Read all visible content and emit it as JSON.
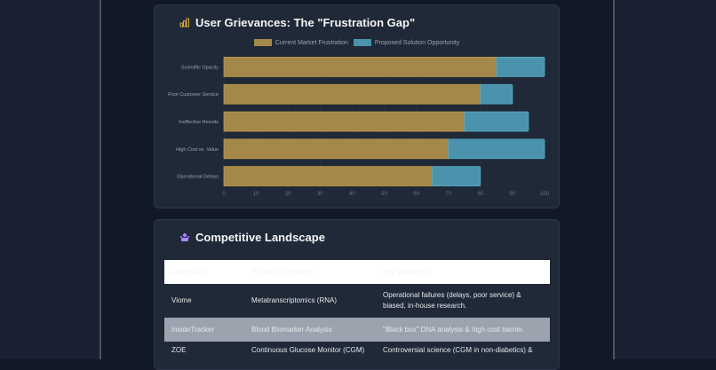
{
  "chart_section": {
    "title": "User Grievances: The \"Frustration Gap\"",
    "icon": "bar-chart-icon"
  },
  "chart_data": {
    "type": "bar",
    "orientation": "horizontal",
    "stacked": true,
    "categories": [
      "Scientific Opacity",
      "Poor Customer Service",
      "Ineffective Results",
      "High Cost vs. Value",
      "Operational Delays"
    ],
    "series": [
      {
        "name": "Current Market Frustration",
        "values": [
          85,
          80,
          75,
          70,
          65
        ],
        "color": "#a3884a"
      },
      {
        "name": "Proposed Solution Opportunity",
        "values": [
          15,
          10,
          20,
          30,
          15
        ],
        "color": "#4b93ad"
      }
    ],
    "xlim": [
      0,
      100
    ],
    "xticks": [
      0,
      10,
      20,
      30,
      40,
      50,
      60,
      70,
      80,
      90,
      100
    ],
    "legend": "top",
    "grid": true
  },
  "table_section": {
    "title": "Competitive Landscape",
    "icon": "users-icon",
    "headers": [
      "Competitor",
      "Primary Technology",
      "Key Weakness"
    ],
    "rows": [
      [
        "Viome",
        "Metatranscriptomics (RNA)",
        "Operational failures (delays, poor service) & biased, in-house research."
      ],
      [
        "InsideTracker",
        "Blood Biomarker Analysis",
        "\"Black box\" DNA analysis & high cost barrier."
      ],
      [
        "ZOE",
        "Continuous Glucose Monitor (CGM)",
        "Controversial science (CGM in non-diabetics) &"
      ]
    ]
  }
}
